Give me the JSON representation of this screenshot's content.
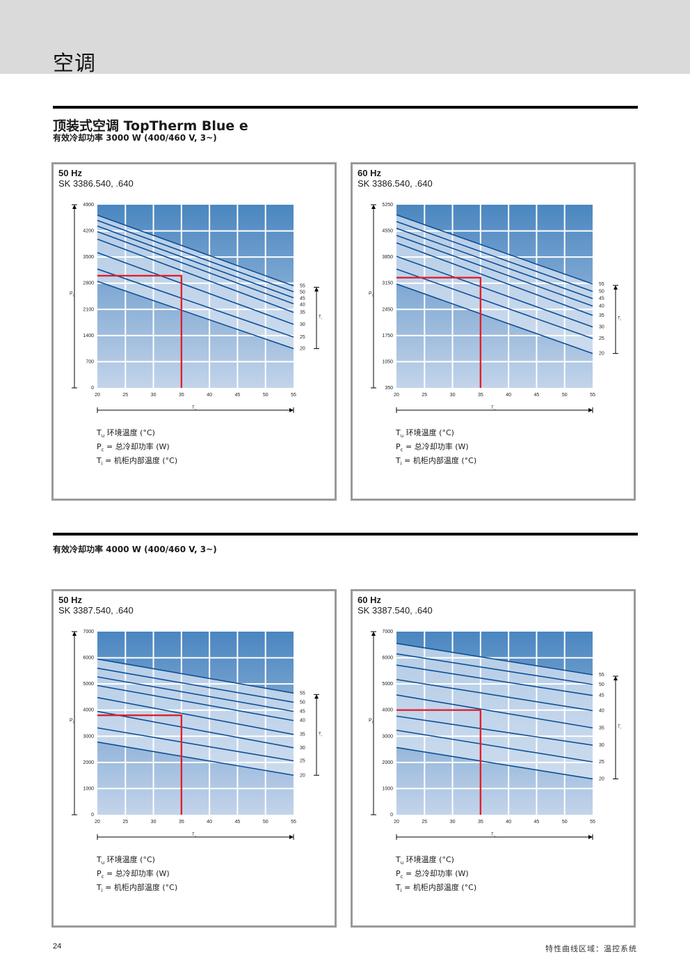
{
  "header": {
    "section_title": "空调",
    "product_title": "顶装式空调 TopTherm Blue e",
    "subtitle_3000": "有效冷却功率 3000 W (400/460 V, 3~)",
    "subtitle_4000": "有效冷却功率 4000 W (400/460 V, 3~)"
  },
  "legend": {
    "tu_sym": "T",
    "tu_sub": "u",
    "tu_text": " 环境温度 (°C)",
    "pc_sym": "P",
    "pc_sub": "c",
    "pc_text": " = 总冷却功率 (W)",
    "ti_sym": "T",
    "ti_sub": "i",
    "ti_text": "  = 机柜内部温度 (°C)"
  },
  "footer": {
    "page_number": "24",
    "text": "特性曲线区域：温控系统"
  },
  "colors": {
    "bg_top": "#4a86c0",
    "bg_bottom": "#c3d4ea",
    "band": "#d7e3f2",
    "curve": "#0d4f96",
    "marker": "#e0202c"
  },
  "chart_data": [
    {
      "type": "line",
      "hz": "50 Hz",
      "model": "SK 3386.540, .640",
      "xlabel": "T",
      "xlabel_sub": "u",
      "ylabel": "P",
      "ylabel_sub": "c",
      "ti_label": "T",
      "ti_sub": "i",
      "x_ticks": [
        20,
        25,
        30,
        35,
        40,
        45,
        50,
        55
      ],
      "y_ticks": [
        0,
        700,
        1400,
        2100,
        2800,
        3500,
        4200,
        4900
      ],
      "xlim": [
        20,
        55
      ],
      "ylim": [
        0,
        4900
      ],
      "series": [
        {
          "name": "55",
          "x": [
            20,
            55
          ],
          "y": [
            4620,
            2730
          ]
        },
        {
          "name": "50",
          "x": [
            20,
            55
          ],
          "y": [
            4480,
            2570
          ]
        },
        {
          "name": "45",
          "x": [
            20,
            55
          ],
          "y": [
            4330,
            2410
          ]
        },
        {
          "name": "40",
          "x": [
            20,
            55
          ],
          "y": [
            4180,
            2250
          ]
        },
        {
          "name": "35",
          "x": [
            20,
            55
          ],
          "y": [
            3980,
            2020
          ]
        },
        {
          "name": "30",
          "x": [
            20,
            55
          ],
          "y": [
            3620,
            1700
          ]
        },
        {
          "name": "25",
          "x": [
            20,
            55
          ],
          "y": [
            3180,
            1360
          ]
        },
        {
          "name": "20",
          "x": [
            20,
            55
          ],
          "y": [
            2850,
            1050
          ]
        }
      ],
      "marker": {
        "x": 35,
        "y": 3000
      }
    },
    {
      "type": "line",
      "hz": "60 Hz",
      "model": "SK 3386.540, .640",
      "xlabel": "T",
      "xlabel_sub": "u",
      "ylabel": "P",
      "ylabel_sub": "c",
      "ti_label": "T",
      "ti_sub": "i",
      "x_ticks": [
        20,
        25,
        30,
        35,
        40,
        45,
        50,
        55
      ],
      "y_ticks": [
        350,
        1050,
        1750,
        2450,
        3150,
        3850,
        4550,
        5250
      ],
      "xlim": [
        20,
        55
      ],
      "ylim": [
        350,
        5250
      ],
      "series": [
        {
          "name": "55",
          "x": [
            20,
            55
          ],
          "y": [
            4980,
            3130
          ]
        },
        {
          "name": "50",
          "x": [
            20,
            55
          ],
          "y": [
            4800,
            2930
          ]
        },
        {
          "name": "45",
          "x": [
            20,
            55
          ],
          "y": [
            4620,
            2740
          ]
        },
        {
          "name": "40",
          "x": [
            20,
            55
          ],
          "y": [
            4430,
            2540
          ]
        },
        {
          "name": "35",
          "x": [
            20,
            55
          ],
          "y": [
            4230,
            2290
          ]
        },
        {
          "name": "30",
          "x": [
            20,
            55
          ],
          "y": [
            3870,
            1980
          ]
        },
        {
          "name": "25",
          "x": [
            20,
            55
          ],
          "y": [
            3530,
            1670
          ]
        },
        {
          "name": "20",
          "x": [
            20,
            55
          ],
          "y": [
            3130,
            1270
          ]
        }
      ],
      "marker": {
        "x": 35,
        "y": 3300
      }
    },
    {
      "type": "line",
      "hz": "50 Hz",
      "model": "SK 3387.540, .640",
      "xlabel": "T",
      "xlabel_sub": "u",
      "ylabel": "P",
      "ylabel_sub": "c",
      "ti_label": "T",
      "ti_sub": "i",
      "x_ticks": [
        20,
        25,
        30,
        35,
        40,
        45,
        50,
        55
      ],
      "y_ticks": [
        0,
        1000,
        2000,
        3000,
        4000,
        5000,
        6000,
        7000
      ],
      "xlim": [
        20,
        55
      ],
      "ylim": [
        0,
        7000
      ],
      "series": [
        {
          "name": "55",
          "x": [
            20,
            55
          ],
          "y": [
            5950,
            4650
          ]
        },
        {
          "name": "50",
          "x": [
            20,
            55
          ],
          "y": [
            5600,
            4300
          ]
        },
        {
          "name": "45",
          "x": [
            20,
            55
          ],
          "y": [
            5270,
            3950
          ]
        },
        {
          "name": "40",
          "x": [
            20,
            55
          ],
          "y": [
            4940,
            3600
          ]
        },
        {
          "name": "35",
          "x": [
            20,
            55
          ],
          "y": [
            4480,
            3070
          ]
        },
        {
          "name": "30",
          "x": [
            20,
            55
          ],
          "y": [
            3950,
            2560
          ]
        },
        {
          "name": "25",
          "x": [
            20,
            55
          ],
          "y": [
            3320,
            2060
          ]
        },
        {
          "name": "20",
          "x": [
            20,
            55
          ],
          "y": [
            2780,
            1510
          ]
        }
      ],
      "marker": {
        "x": 35,
        "y": 3800
      }
    },
    {
      "type": "line",
      "hz": "60 Hz",
      "model": "SK 3387.540, .640",
      "xlabel": "T",
      "xlabel_sub": "u",
      "ylabel": "P",
      "ylabel_sub": "c",
      "ti_label": "T",
      "ti_sub": "i",
      "x_ticks": [
        20,
        25,
        30,
        35,
        40,
        45,
        50,
        55
      ],
      "y_ticks": [
        0,
        1000,
        2000,
        3000,
        4000,
        5000,
        6000,
        7000
      ],
      "xlim": [
        20,
        55
      ],
      "ylim": [
        0,
        7000
      ],
      "series": [
        {
          "name": "55",
          "x": [
            20,
            55
          ],
          "y": [
            6550,
            5350
          ]
        },
        {
          "name": "50",
          "x": [
            20,
            55
          ],
          "y": [
            6150,
            4980
          ]
        },
        {
          "name": "45",
          "x": [
            20,
            55
          ],
          "y": [
            5720,
            4560
          ]
        },
        {
          "name": "40",
          "x": [
            20,
            55
          ],
          "y": [
            5170,
            3980
          ]
        },
        {
          "name": "35",
          "x": [
            20,
            55
          ],
          "y": [
            4580,
            3320
          ]
        },
        {
          "name": "30",
          "x": [
            20,
            55
          ],
          "y": [
            3770,
            2660
          ]
        },
        {
          "name": "25",
          "x": [
            20,
            55
          ],
          "y": [
            3230,
            2020
          ]
        },
        {
          "name": "20",
          "x": [
            20,
            55
          ],
          "y": [
            2570,
            1370
          ]
        }
      ],
      "marker": {
        "x": 35,
        "y": 4000
      }
    }
  ]
}
